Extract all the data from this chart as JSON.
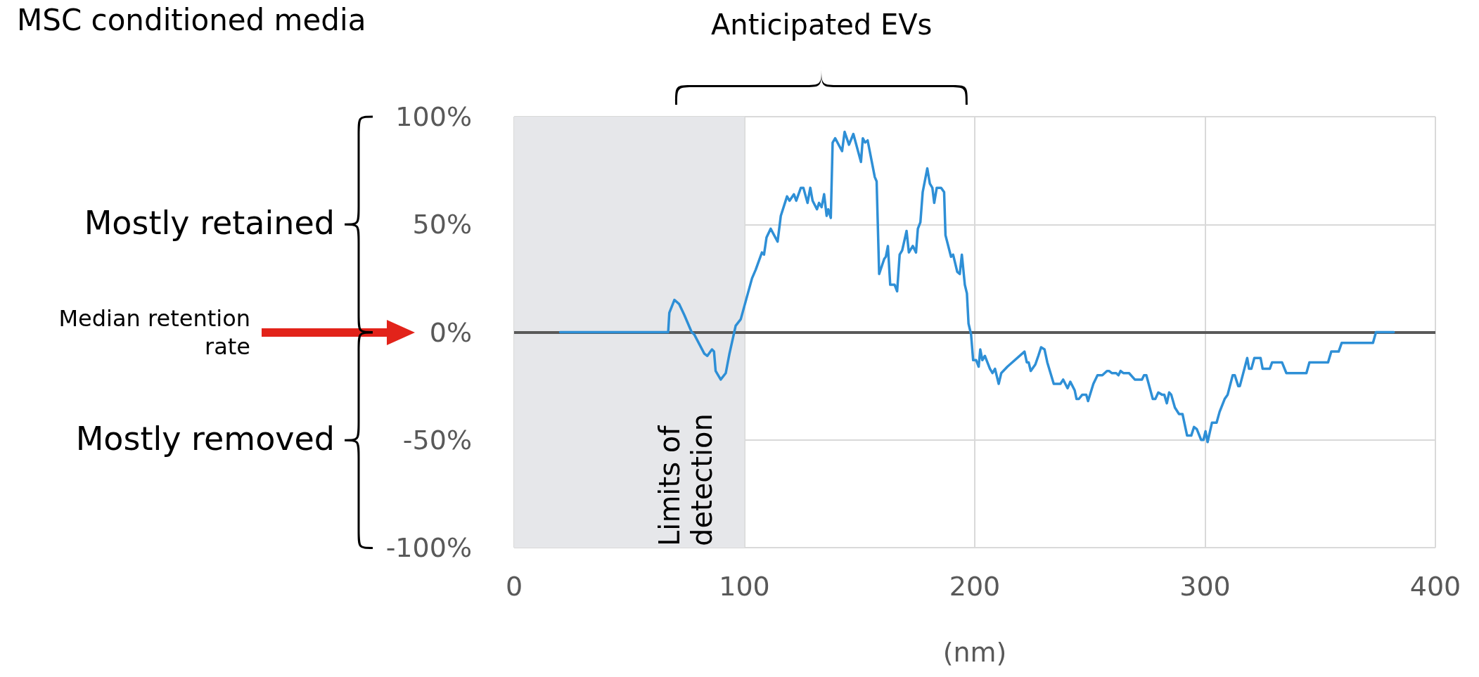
{
  "chart_data": {
    "type": "line",
    "title": "MSC conditioned media",
    "xlabel": "(nm)",
    "annotations": [
      "Anticipated EVs",
      "Mostly retained",
      "Mostly removed",
      "Median retention rate"
    ],
    "xlim": [
      0,
      400
    ],
    "xticks": [
      0,
      100,
      200,
      300,
      400
    ],
    "ylim": [
      -100,
      100
    ],
    "yticks": [
      {
        "value": -100,
        "label": "-100%"
      },
      {
        "value": -50,
        "label": "-50%"
      },
      {
        "value": 0,
        "label": "0%"
      },
      {
        "value": 50,
        "label": "50%"
      },
      {
        "value": 100,
        "label": "100%"
      }
    ],
    "grid": true,
    "marker": "none",
    "line_style": "solid",
    "ref_lines": [
      {
        "axis": "y",
        "value": 0,
        "color": "#595959"
      }
    ],
    "bands": [
      {
        "axis": "x",
        "from": 0,
        "to": 100,
        "label": "Limits of detection",
        "color": "#e6e7ea"
      }
    ],
    "series": [
      {
        "color": "#2e8fd6",
        "x": [
          20,
          66.9,
          67.4,
          69.6,
          71.7,
          73.9,
          77.1,
          78.2,
          82.6,
          83.9,
          85.9,
          86.8,
          87.5,
          89.7,
          91.9,
          93.5,
          96.2,
          98.4,
          103.3,
          104.9,
          107.6,
          108.5,
          109.6,
          111.4,
          114.4,
          115.8,
          118.5,
          119.6,
          121.5,
          122.5,
          124.5,
          125.6,
          127.4,
          128.6,
          129.6,
          131.5,
          132.4,
          133.5,
          134.6,
          135.7,
          136.4,
          137.5,
          138.3,
          139.4,
          142.4,
          143.5,
          145.4,
          147.3,
          150.6,
          151.4,
          152.4,
          153.5,
          155.5,
          156.6,
          157.4,
          158.5,
          160.7,
          161.4,
          162.3,
          163.3,
          165.2,
          166.3,
          167.4,
          168.5,
          170.4,
          171.4,
          173.1,
          174.5,
          175.3,
          176.4,
          177.4,
          179.4,
          180.5,
          181.6,
          182.4,
          183.5,
          185.4,
          186.7,
          187.3,
          189.7,
          190.6,
          192.4,
          193.5,
          194.4,
          195.7,
          196.6,
          197.3,
          198.4,
          199.3,
          200.6,
          201.7,
          202.4,
          203.3,
          204.4,
          206.6,
          207.7,
          208.8,
          210.4,
          211.5,
          214.2,
          221.6,
          222.6,
          223.4,
          224.3,
          226.3,
          227.6,
          228.8,
          230.3,
          231.5,
          234.3,
          236.3,
          237.2,
          238.4,
          240.3,
          241.5,
          243.4,
          244.2,
          245.2,
          246.7,
          248.4,
          249.2,
          251.5,
          253.3,
          255.4,
          257.4,
          258.3,
          259.5,
          261.4,
          262.4,
          263.3,
          264.5,
          267,
          269.5,
          272.6,
          273.5,
          274.5,
          277.3,
          278.4,
          279.7,
          281.3,
          282.3,
          283.4,
          284.4,
          285.3,
          286.9,
          288.7,
          290.2,
          292.2,
          294,
          295.2,
          296.4,
          298.3,
          299.3,
          300.2,
          301.1,
          303,
          305,
          306.3,
          308.5,
          309.8,
          312,
          312.9,
          314.4,
          315.1,
          318.3,
          319.1,
          320.1,
          321.4,
          324.1,
          325,
          328.1,
          329.1,
          333.4,
          335.3,
          344,
          345.3,
          353.4,
          354.8,
          358,
          359.3,
          372.9,
          374.2,
          381.9
        ],
        "values": [
          0,
          0,
          9,
          15,
          13,
          8,
          0,
          -1,
          -10,
          -11,
          -8,
          -9,
          -18,
          -22,
          -19,
          -10,
          3,
          6,
          25,
          29,
          37,
          36,
          44,
          48,
          42,
          54,
          63,
          61,
          64,
          61,
          67,
          67,
          60,
          67,
          61,
          57,
          60,
          58,
          64,
          54,
          57,
          53,
          88,
          90,
          84,
          93,
          87,
          92,
          79,
          90,
          88,
          89,
          78,
          72,
          70,
          27,
          34,
          35,
          40,
          22,
          22,
          19,
          36,
          38,
          47,
          37,
          40,
          37,
          48,
          51,
          65,
          76,
          69,
          67,
          60,
          67,
          67,
          65,
          45,
          35,
          36,
          28,
          27,
          36,
          22,
          18,
          4,
          -1,
          -13,
          -13,
          -16,
          -8,
          -13,
          -11,
          -17,
          -19,
          -17,
          -24,
          -19,
          -16,
          -9,
          -14,
          -14,
          -18,
          -15,
          -11,
          -7,
          -8,
          -14,
          -24,
          -24,
          -24,
          -22,
          -26,
          -23,
          -27,
          -31,
          -31,
          -29,
          -29,
          -32,
          -24,
          -20,
          -20,
          -18,
          -18,
          -19,
          -19,
          -20,
          -18,
          -19,
          -19,
          -22,
          -22,
          -20,
          -20,
          -31,
          -31,
          -28,
          -29,
          -29,
          -33,
          -28,
          -29,
          -35,
          -38,
          -38,
          -48,
          -48,
          -44,
          -45,
          -50,
          -50,
          -46,
          -51,
          -42,
          -42,
          -37,
          -31,
          -29,
          -20,
          -20,
          -25,
          -25,
          -12,
          -17,
          -17,
          -12,
          -12,
          -17,
          -17,
          -14,
          -14,
          -19,
          -19,
          -14,
          -14,
          -9,
          -9,
          -5,
          -5,
          0,
          0
        ]
      }
    ]
  }
}
